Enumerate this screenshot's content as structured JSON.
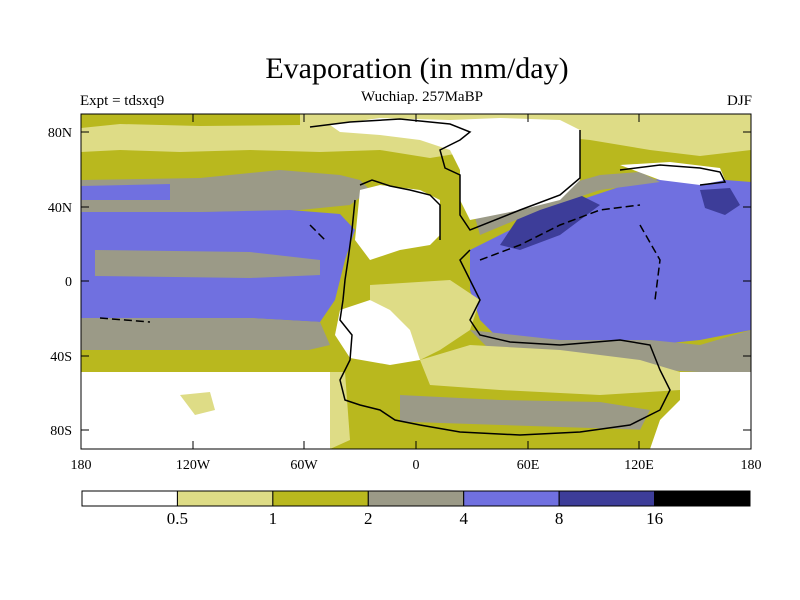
{
  "title": "Evaporation (in mm/day)",
  "subtitle": "Wuchiap. 257MaBP",
  "left_label": "Expt = tdsxq9",
  "right_label": "DJF",
  "axes": {
    "lat_ticks": [
      "80N",
      "40N",
      "0",
      "40S",
      "80S"
    ],
    "lon_ticks": [
      "180",
      "120W",
      "60W",
      "0",
      "60E",
      "120E",
      "180"
    ]
  },
  "colorbar": {
    "colors": [
      "#ffffff",
      "#dedc86",
      "#b9b81e",
      "#9b9a87",
      "#7070e0",
      "#3d3d99",
      "#000000"
    ],
    "labels": [
      "0.5",
      "1",
      "2",
      "4",
      "8",
      "16"
    ]
  }
}
